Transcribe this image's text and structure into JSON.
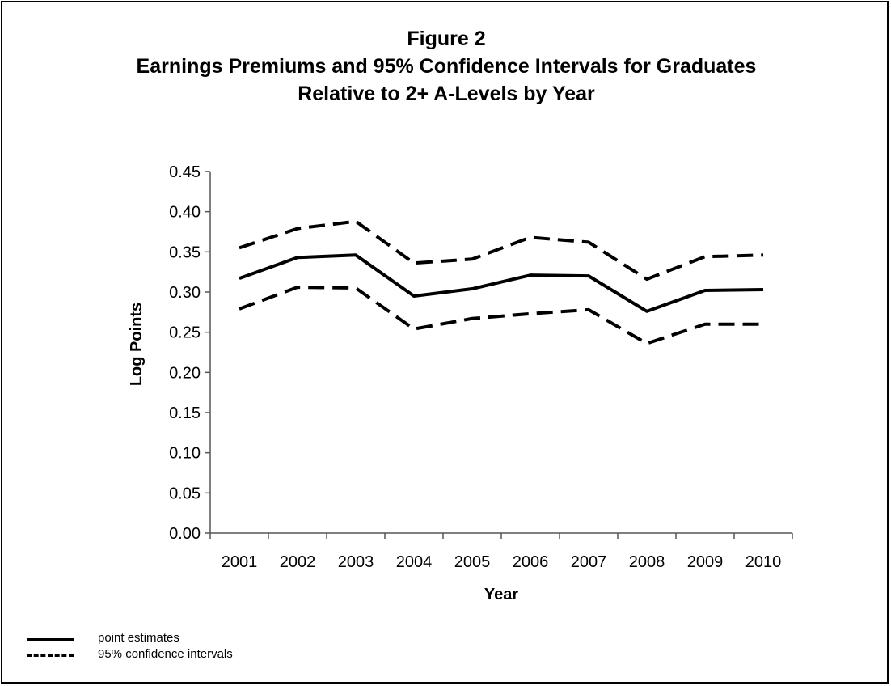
{
  "title_lines": [
    "Figure 2",
    "Earnings Premiums and 95% Confidence Intervals for Graduates",
    "Relative to 2+ A-Levels by Year"
  ],
  "chart_data": {
    "type": "line",
    "categories": [
      "2001",
      "2002",
      "2003",
      "2004",
      "2005",
      "2006",
      "2007",
      "2008",
      "2009",
      "2010"
    ],
    "series": [
      {
        "name": "point estimates",
        "style": "solid",
        "values": [
          0.317,
          0.343,
          0.346,
          0.295,
          0.304,
          0.321,
          0.32,
          0.276,
          0.302,
          0.303
        ]
      },
      {
        "name": "95% confidence intervals",
        "style": "dashed",
        "values": [
          0.355,
          0.379,
          0.388,
          0.336,
          0.341,
          0.368,
          0.362,
          0.316,
          0.344,
          0.346
        ]
      },
      {
        "name": "95% confidence intervals",
        "style": "dashed",
        "values": [
          0.279,
          0.306,
          0.305,
          0.254,
          0.267,
          0.273,
          0.278,
          0.236,
          0.26,
          0.26
        ]
      }
    ],
    "y_ticks": [
      "0.00",
      "0.05",
      "0.10",
      "0.15",
      "0.20",
      "0.25",
      "0.30",
      "0.35",
      "0.40",
      "0.45"
    ],
    "ylim": [
      0,
      0.45
    ],
    "xlabel": "Year",
    "ylabel": "Log Points",
    "grid": false,
    "legend_position": "bottom-left",
    "line_color": "#000000"
  },
  "legend": [
    {
      "label": "point estimates",
      "style": "solid"
    },
    {
      "label": "95% confidence intervals",
      "style": "dashed"
    }
  ]
}
